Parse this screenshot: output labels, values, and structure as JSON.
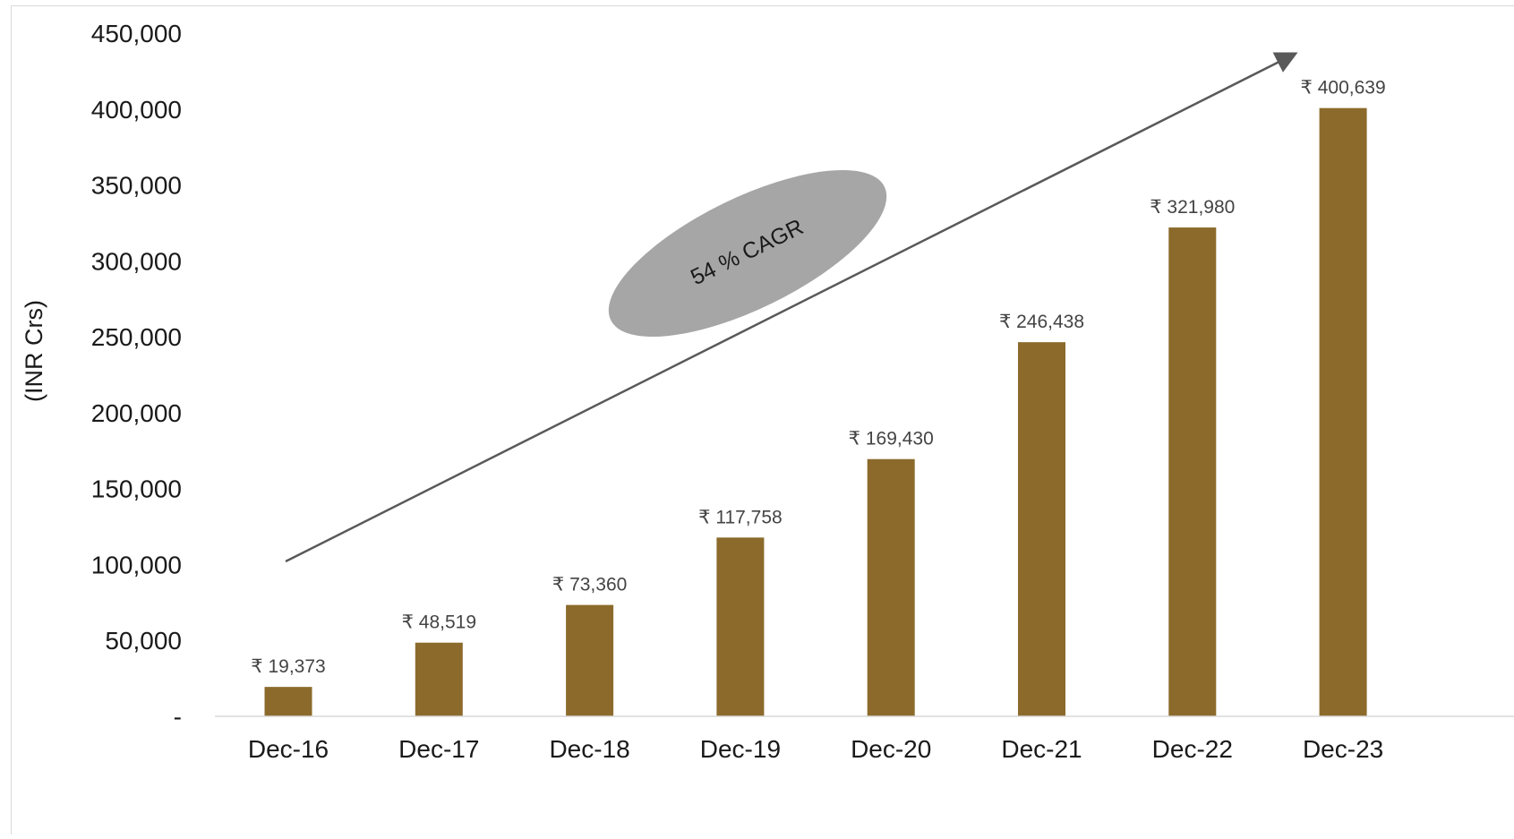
{
  "chart_data": {
    "type": "bar",
    "title": "",
    "xlabel": "",
    "ylabel": "(INR Crs)",
    "categories": [
      "Dec-16",
      "Dec-17",
      "Dec-18",
      "Dec-19",
      "Dec-20",
      "Dec-21",
      "Dec-22",
      "Dec-23"
    ],
    "values": [
      19373,
      48519,
      73360,
      117758,
      169430,
      246438,
      321980,
      400639
    ],
    "value_labels": [
      "₹ 19,373",
      "₹ 48,519",
      "₹ 73,360",
      "₹ 117,758",
      "₹ 169,430",
      "₹ 246,438",
      "₹ 321,980",
      "₹ 400,639"
    ],
    "ylim": [
      0,
      450000
    ],
    "yticks": [
      0,
      50000,
      100000,
      150000,
      200000,
      250000,
      300000,
      350000,
      400000,
      450000
    ],
    "ytick_labels": [
      "-",
      "50,000",
      "100,000",
      "150,000",
      "200,000",
      "250,000",
      "300,000",
      "350,000",
      "400,000",
      "450,000"
    ],
    "grid": false,
    "legend": "none",
    "annotations": [
      {
        "type": "arrow",
        "text": "",
        "from": {
          "category": "Dec-16",
          "y": 102000
        },
        "to": {
          "category": "Dec-23",
          "y": 436000
        }
      },
      {
        "type": "ellipse-label",
        "text": "54 % CAGR"
      }
    ],
    "colors": {
      "bar": "#8B6A2B",
      "arrow": "#595959",
      "ellipse": "#A6A6A6",
      "axis": "#D9D9D9"
    }
  }
}
